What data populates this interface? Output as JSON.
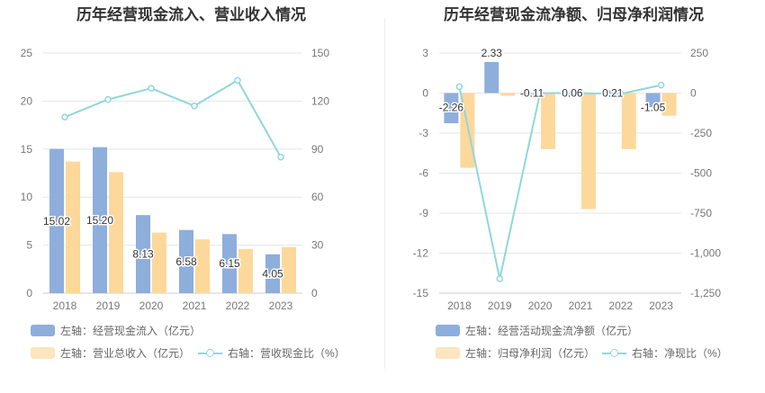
{
  "chart_data": [
    {
      "type": "bar",
      "title": "历年经营现金流入、营业收入情况",
      "categories": [
        "2018",
        "2019",
        "2020",
        "2021",
        "2022",
        "2023"
      ],
      "series": [
        {
          "name": "左轴：经营现金流入（亿元）",
          "axis": "left",
          "kind": "bar",
          "color": "#8eaedc",
          "values": [
            15.02,
            15.2,
            8.13,
            6.58,
            6.15,
            4.05
          ],
          "labels": [
            "15.02",
            "15.20",
            "8.13",
            "6.58",
            "6.15",
            "4.05"
          ]
        },
        {
          "name": "左轴：营业总收入（亿元）",
          "axis": "left",
          "kind": "bar",
          "color": "#fdd89b",
          "values": [
            13.7,
            12.6,
            6.3,
            5.6,
            4.6,
            4.8
          ]
        },
        {
          "name": "右轴：营收现金比（%）",
          "axis": "right",
          "kind": "line",
          "color": "#8fd7dc",
          "values": [
            110,
            121,
            128,
            117,
            133,
            85
          ]
        }
      ],
      "ylim_left": [
        0,
        25
      ],
      "yticks_left": [
        "0",
        "5",
        "10",
        "15",
        "20",
        "25"
      ],
      "ylim_right": [
        0,
        150
      ],
      "yticks_right": [
        "0",
        "30",
        "60",
        "90",
        "120",
        "150"
      ],
      "grid": true,
      "legend_position": "bottom"
    },
    {
      "type": "bar",
      "title": "历年经营现金流净额、归母净利润情况",
      "categories": [
        "2018",
        "2019",
        "2020",
        "2021",
        "2022",
        "2023"
      ],
      "series": [
        {
          "name": "左轴：经营活动现金流净额（亿元）",
          "axis": "left",
          "kind": "bar",
          "color": "#8eaedc",
          "values": [
            -2.26,
            2.33,
            -0.11,
            0.06,
            0.21,
            -1.05
          ],
          "labels": [
            "-2.26",
            "2.33",
            "-0.11",
            "0.06",
            "0.21",
            "-1.05"
          ]
        },
        {
          "name": "左轴：归母净利润（亿元）",
          "axis": "left",
          "kind": "bar",
          "color": "#fdd89b",
          "values": [
            -5.6,
            -0.2,
            -4.2,
            -8.7,
            -4.2,
            -1.7
          ]
        },
        {
          "name": "右轴：净现比（%）",
          "axis": "right",
          "kind": "line",
          "color": "#8fd7dc",
          "values": [
            40,
            -1160,
            0,
            0,
            -5,
            50
          ]
        }
      ],
      "ylim_left": [
        -15,
        3
      ],
      "yticks_left": [
        "-15",
        "-12",
        "-9",
        "-6",
        "-3",
        "0",
        "3"
      ],
      "ylim_right": [
        -1250,
        250
      ],
      "yticks_right": [
        "-1,250",
        "-1,000",
        "-750",
        "-500",
        "-250",
        "0",
        "250"
      ],
      "grid": true,
      "legend_position": "bottom"
    }
  ]
}
